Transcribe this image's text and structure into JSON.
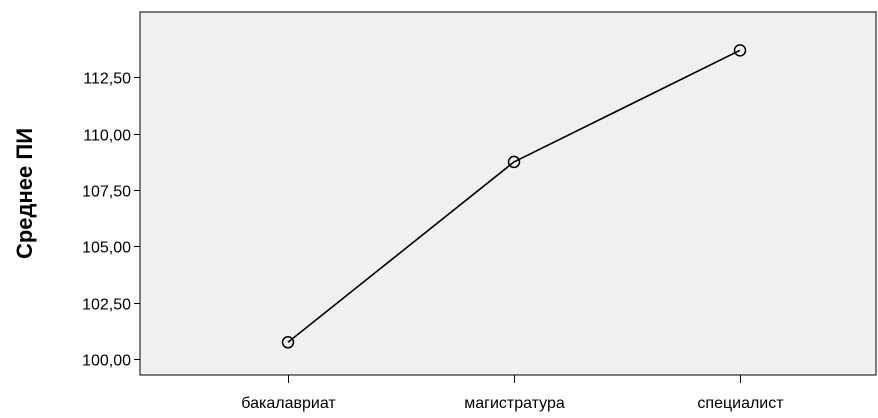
{
  "chart_data": {
    "type": "line",
    "title": "",
    "xlabel": "",
    "ylabel": "Среднее ПИ",
    "categories": [
      "бакалавриат",
      "магистратура",
      "специалист"
    ],
    "series": [
      {
        "values": [
          100.75,
          108.75,
          113.7
        ]
      }
    ],
    "ylim": [
      99.3,
      115.4
    ],
    "yticks": [
      100.0,
      102.5,
      105.0,
      107.5,
      110.0,
      112.5
    ],
    "ytick_labels": [
      "100,00",
      "102,50",
      "105,00",
      "107,50",
      "110,00",
      "112,50"
    ],
    "grid": false,
    "legend": "none",
    "colors": {
      "plot_background": "#f0f0f0",
      "line": "#000000",
      "marker_stroke": "#000000"
    }
  }
}
